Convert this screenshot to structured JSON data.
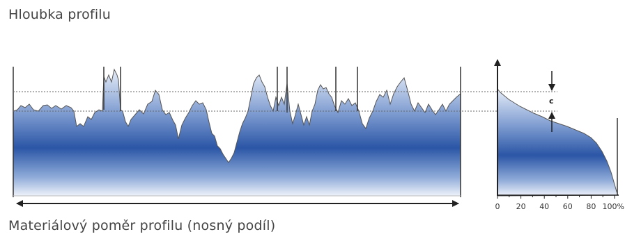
{
  "labels": {
    "profile_depth": "Hloubka profilu",
    "material_ratio": "Materiálový poměr profilu (nosný podíl)",
    "c_marker": "c"
  },
  "colors": {
    "fill_dark": "#2a57a8",
    "fill_light": "#e8eef8",
    "outline": "#444444",
    "dashed": "#666666"
  },
  "chart_data": {
    "type": "area",
    "x_ticks": [
      "0",
      "20",
      "40",
      "60",
      "80",
      "100%"
    ]
  }
}
